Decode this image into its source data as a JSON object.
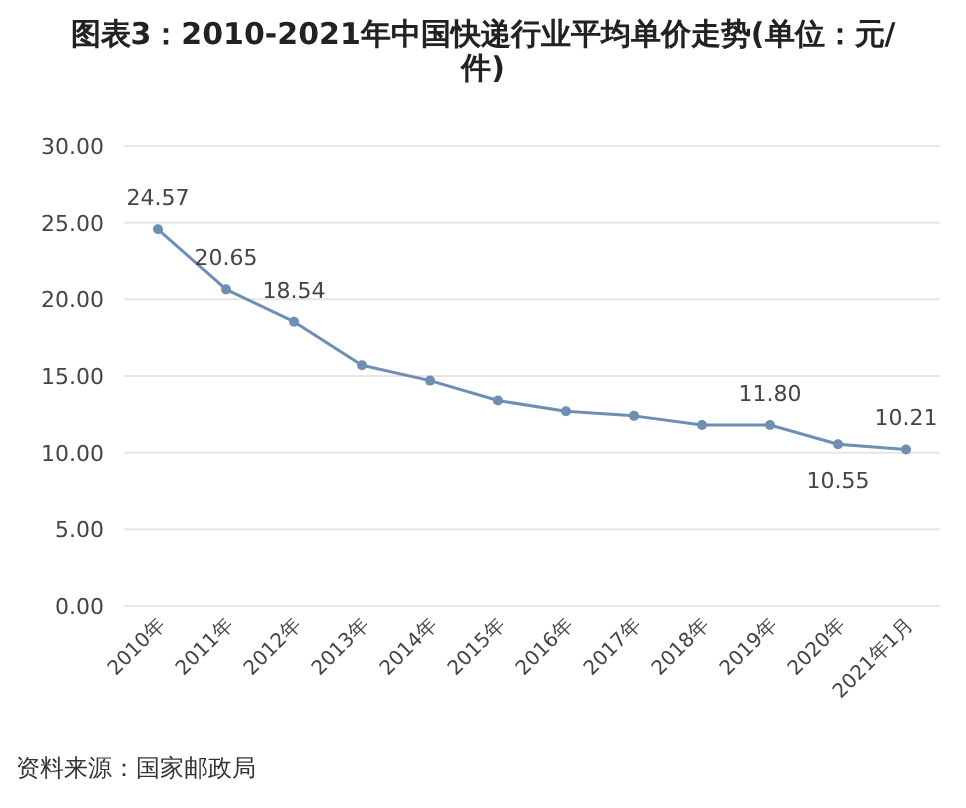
{
  "chart_data": {
    "type": "line",
    "title": "图表3：2010-2021年中国快递行业平均单价走势(单位：元/件)",
    "categories": [
      "2010年",
      "2011年",
      "2012年",
      "2013年",
      "2014年",
      "2015年",
      "2016年",
      "2017年",
      "2018年",
      "2019年",
      "2020年",
      "2021年1月"
    ],
    "series": [
      {
        "color": "#6e8fb3",
        "values": [
          24.57,
          20.65,
          18.54,
          15.7,
          14.7,
          13.4,
          12.7,
          12.4,
          11.8,
          11.8,
          10.55,
          10.21
        ],
        "value_labels": [
          "24.57",
          "20.65",
          "18.54",
          null,
          null,
          null,
          null,
          null,
          null,
          "11.80",
          "10.55",
          "10.21"
        ]
      }
    ],
    "ylim": [
      0,
      30
    ],
    "yticks": [
      {
        "value": 0,
        "label": "0.00"
      },
      {
        "value": 5,
        "label": "5.00"
      },
      {
        "value": 10,
        "label": "10.00"
      },
      {
        "value": 15,
        "label": "15.00"
      },
      {
        "value": 20,
        "label": "20.00"
      },
      {
        "value": 25,
        "label": "25.00"
      },
      {
        "value": 30,
        "label": "30.00"
      }
    ],
    "grid": "y",
    "marker": "circle",
    "annotations": [
      "资料来源：国家邮政局"
    ]
  }
}
